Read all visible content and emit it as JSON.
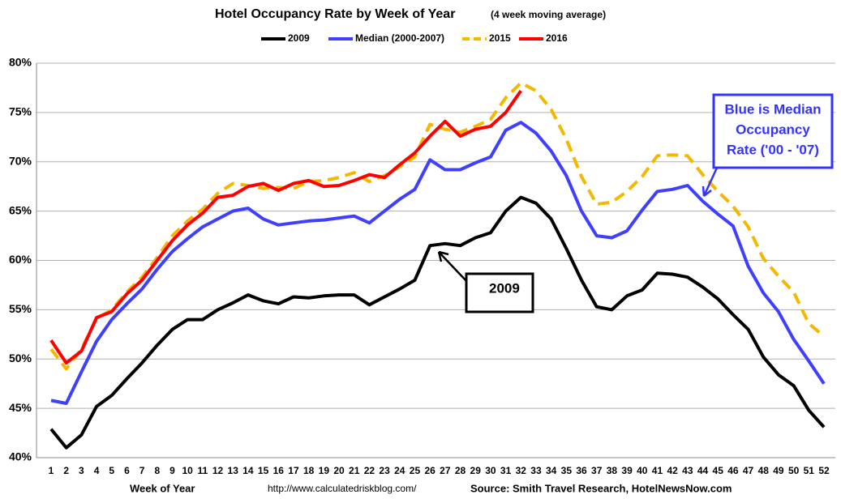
{
  "chart_data": {
    "type": "line",
    "title": "Hotel Occupancy Rate by  Week of Year",
    "subtitle": "(4 week moving average)",
    "x_label": "Week of Year",
    "url": "http://www.calculatedriskblog.com/",
    "source": "Source: Smith Travel Research, HotelNewsNow.com",
    "annotations": [
      {
        "lines": [
          "Blue is Median",
          "Occupancy",
          "Rate ('00 - '07)"
        ],
        "color": "#3333ff"
      },
      {
        "lines": [
          "2009"
        ],
        "color": "#000000"
      }
    ],
    "categories": [
      1,
      2,
      3,
      4,
      5,
      6,
      7,
      8,
      9,
      10,
      11,
      12,
      13,
      14,
      15,
      16,
      17,
      18,
      19,
      20,
      21,
      22,
      23,
      24,
      25,
      26,
      27,
      28,
      29,
      30,
      31,
      32,
      33,
      34,
      35,
      36,
      37,
      38,
      39,
      40,
      41,
      42,
      43,
      44,
      45,
      46,
      47,
      48,
      49,
      50,
      51,
      52
    ],
    "ylim": [
      40,
      80
    ],
    "yticks": [
      {
        "value": 40,
        "label": "40%"
      },
      {
        "value": 45,
        "label": "45%"
      },
      {
        "value": 50,
        "label": "50%"
      },
      {
        "value": 55,
        "label": "55%"
      },
      {
        "value": 60,
        "label": "60%"
      },
      {
        "value": 65,
        "label": "65%"
      },
      {
        "value": 70,
        "label": "70%"
      },
      {
        "value": 75,
        "label": "75%"
      },
      {
        "value": 80,
        "label": "80%"
      }
    ],
    "grid": true,
    "series": [
      {
        "name": "2009",
        "color": "#000000",
        "dash": false,
        "values": [
          42.9,
          41.0,
          42.3,
          45.2,
          46.3,
          48.0,
          49.6,
          51.4,
          53.0,
          54.0,
          54.0,
          55.0,
          55.7,
          56.5,
          55.9,
          55.6,
          56.3,
          56.2,
          56.4,
          56.5,
          56.5,
          55.5,
          56.3,
          57.1,
          58.0,
          61.5,
          61.7,
          61.5,
          62.3,
          62.8,
          65.0,
          66.4,
          65.8,
          64.2,
          61.2,
          58.0,
          55.3,
          55.0,
          56.4,
          57.0,
          58.7,
          58.6,
          58.3,
          57.3,
          56.1,
          54.5,
          53.0,
          50.2,
          48.4,
          47.3,
          44.8,
          43.1
        ]
      },
      {
        "name": "Median (2000-2007)",
        "color": "#3f3fff",
        "dash": false,
        "values": [
          45.8,
          45.5,
          48.7,
          51.8,
          54.0,
          55.6,
          57.1,
          59.1,
          60.9,
          62.2,
          63.4,
          64.2,
          65.0,
          65.3,
          64.2,
          63.6,
          63.8,
          64.0,
          64.1,
          64.3,
          64.5,
          63.8,
          65.0,
          66.2,
          67.2,
          70.2,
          69.2,
          69.2,
          69.9,
          70.5,
          73.2,
          74.0,
          72.9,
          71.1,
          68.6,
          65.0,
          62.5,
          62.3,
          63.0,
          65.1,
          67.0,
          67.2,
          67.6,
          66.0,
          64.7,
          63.5,
          59.4,
          56.7,
          54.8,
          52.0,
          49.8,
          47.5
        ]
      },
      {
        "name": "2015",
        "color": "#f5b800",
        "dash": true,
        "values": [
          51.0,
          49.0,
          51.0,
          54.1,
          55.0,
          56.8,
          58.3,
          60.3,
          62.5,
          64.0,
          65.2,
          66.8,
          67.8,
          67.6,
          67.3,
          67.4,
          67.3,
          68.0,
          68.1,
          68.4,
          68.9,
          68.0,
          68.6,
          69.5,
          70.5,
          73.8,
          73.3,
          73.0,
          73.6,
          74.3,
          76.5,
          78.0,
          77.2,
          75.3,
          72.3,
          68.5,
          65.7,
          65.9,
          67.0,
          68.5,
          70.6,
          70.7,
          70.6,
          68.7,
          67.0,
          65.5,
          63.4,
          60.2,
          58.4,
          56.8,
          53.6,
          52.3
        ]
      },
      {
        "name": "2016",
        "color": "#ff0000",
        "dash": false,
        "values": [
          51.9,
          49.6,
          50.8,
          54.2,
          54.8,
          56.6,
          58.0,
          60.0,
          62.0,
          63.6,
          64.8,
          66.4,
          66.6,
          67.5,
          67.8,
          67.1,
          67.8,
          68.1,
          67.5,
          67.6,
          68.1,
          68.7,
          68.4,
          69.7,
          70.9,
          72.6,
          74.1,
          72.6,
          73.3,
          73.6,
          75.0,
          77.2,
          null,
          null,
          null,
          null,
          null,
          null,
          null,
          null,
          null,
          null,
          null,
          null,
          null,
          null,
          null,
          null,
          null,
          null,
          null,
          null
        ]
      }
    ]
  }
}
